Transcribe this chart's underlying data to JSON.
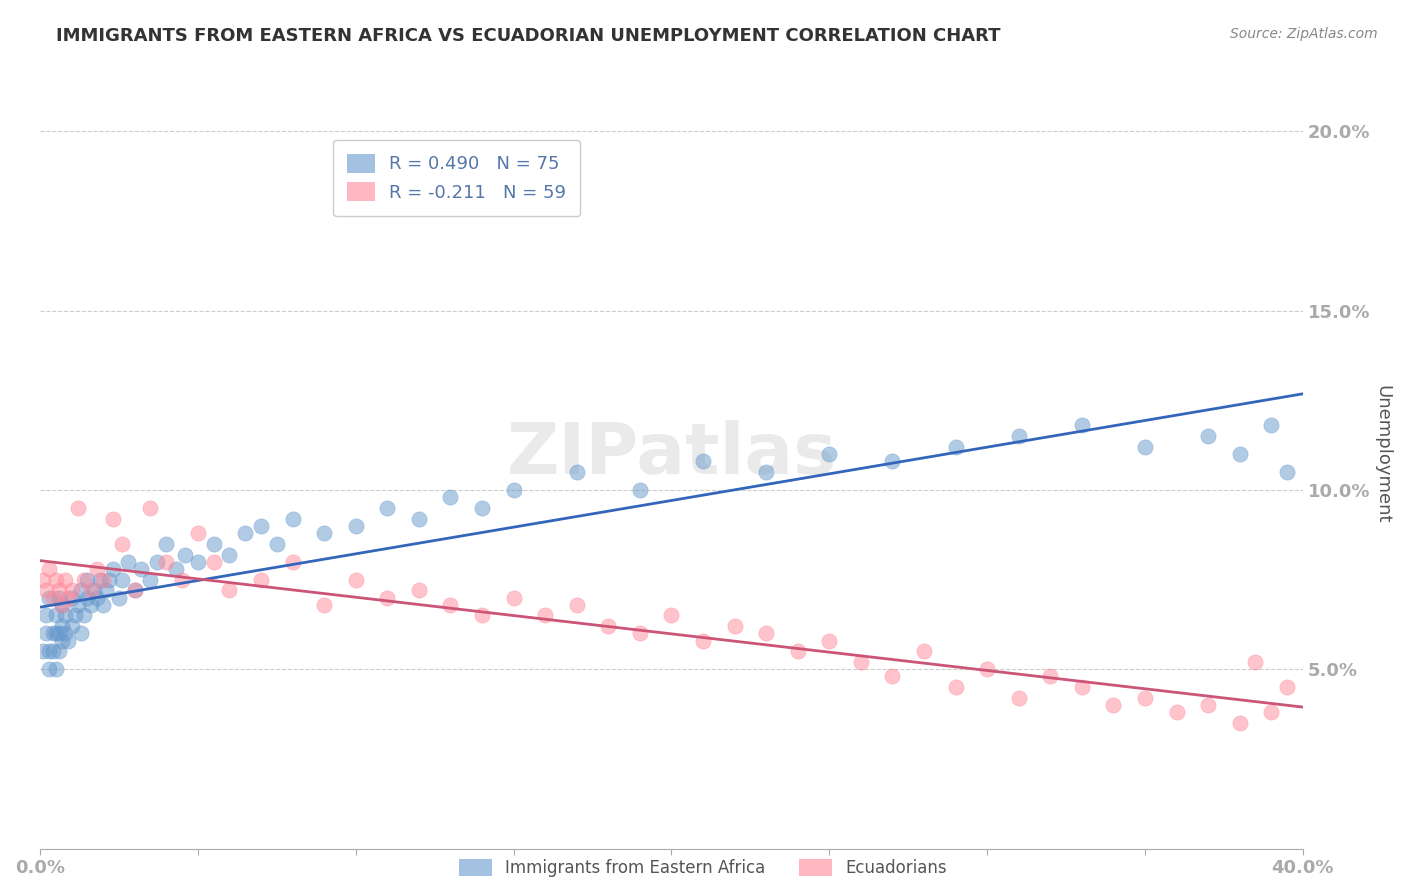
{
  "title": "IMMIGRANTS FROM EASTERN AFRICA VS ECUADORIAN UNEMPLOYMENT CORRELATION CHART",
  "source": "Source: ZipAtlas.com",
  "xlabel": "",
  "ylabel": "Unemployment",
  "xlim": [
    0.0,
    0.4
  ],
  "ylim": [
    0.0,
    0.22
  ],
  "xticks": [
    0.0,
    0.05,
    0.1,
    0.15,
    0.2,
    0.25,
    0.3,
    0.35,
    0.4
  ],
  "xticklabels": [
    "0.0%",
    "",
    "",
    "",
    "",
    "",
    "",
    "",
    "40.0%"
  ],
  "yticks": [
    0.05,
    0.1,
    0.15,
    0.2
  ],
  "yticklabels": [
    "5.0%",
    "10.0%",
    "15.0%",
    "20.0%"
  ],
  "blue_color": "#6699CC",
  "pink_color": "#FF8899",
  "blue_line_color": "#3366BB",
  "pink_line_color": "#CC5577",
  "R_blue": 0.49,
  "N_blue": 75,
  "R_pink": -0.211,
  "N_pink": 59,
  "legend_label_blue": "Immigrants from Eastern Africa",
  "legend_label_pink": "Ecuadorians",
  "watermark": "ZIPatlas",
  "title_color": "#333333",
  "axis_label_color": "#5577AA",
  "grid_color": "#CCCCCC",
  "background_color": "#FFFFFF",
  "blue_scatter_x": [
    0.001,
    0.002,
    0.002,
    0.003,
    0.003,
    0.003,
    0.004,
    0.004,
    0.005,
    0.005,
    0.005,
    0.006,
    0.006,
    0.006,
    0.007,
    0.007,
    0.007,
    0.008,
    0.008,
    0.009,
    0.01,
    0.01,
    0.011,
    0.012,
    0.013,
    0.013,
    0.014,
    0.015,
    0.015,
    0.016,
    0.017,
    0.018,
    0.019,
    0.02,
    0.021,
    0.022,
    0.023,
    0.025,
    0.026,
    0.028,
    0.03,
    0.032,
    0.035,
    0.037,
    0.04,
    0.043,
    0.046,
    0.05,
    0.055,
    0.06,
    0.065,
    0.07,
    0.075,
    0.08,
    0.09,
    0.1,
    0.11,
    0.12,
    0.13,
    0.14,
    0.15,
    0.17,
    0.19,
    0.21,
    0.23,
    0.25,
    0.27,
    0.29,
    0.31,
    0.33,
    0.35,
    0.37,
    0.38,
    0.39,
    0.395
  ],
  "blue_scatter_y": [
    0.055,
    0.06,
    0.065,
    0.05,
    0.055,
    0.07,
    0.055,
    0.06,
    0.05,
    0.06,
    0.065,
    0.055,
    0.06,
    0.07,
    0.058,
    0.062,
    0.068,
    0.06,
    0.065,
    0.058,
    0.062,
    0.07,
    0.065,
    0.068,
    0.06,
    0.072,
    0.065,
    0.07,
    0.075,
    0.068,
    0.072,
    0.07,
    0.075,
    0.068,
    0.072,
    0.075,
    0.078,
    0.07,
    0.075,
    0.08,
    0.072,
    0.078,
    0.075,
    0.08,
    0.085,
    0.078,
    0.082,
    0.08,
    0.085,
    0.082,
    0.088,
    0.09,
    0.085,
    0.092,
    0.088,
    0.09,
    0.095,
    0.092,
    0.098,
    0.095,
    0.1,
    0.105,
    0.1,
    0.108,
    0.105,
    0.11,
    0.108,
    0.112,
    0.115,
    0.118,
    0.112,
    0.115,
    0.11,
    0.118,
    0.105
  ],
  "pink_scatter_x": [
    0.001,
    0.002,
    0.003,
    0.004,
    0.005,
    0.006,
    0.007,
    0.008,
    0.009,
    0.01,
    0.012,
    0.014,
    0.016,
    0.018,
    0.02,
    0.023,
    0.026,
    0.03,
    0.035,
    0.04,
    0.045,
    0.05,
    0.055,
    0.06,
    0.07,
    0.08,
    0.09,
    0.1,
    0.11,
    0.12,
    0.13,
    0.14,
    0.15,
    0.16,
    0.17,
    0.18,
    0.19,
    0.2,
    0.21,
    0.22,
    0.23,
    0.24,
    0.25,
    0.26,
    0.27,
    0.28,
    0.29,
    0.3,
    0.31,
    0.32,
    0.33,
    0.34,
    0.35,
    0.36,
    0.37,
    0.38,
    0.385,
    0.39,
    0.395
  ],
  "pink_scatter_y": [
    0.075,
    0.072,
    0.078,
    0.07,
    0.075,
    0.072,
    0.068,
    0.075,
    0.07,
    0.072,
    0.095,
    0.075,
    0.072,
    0.078,
    0.075,
    0.092,
    0.085,
    0.072,
    0.095,
    0.08,
    0.075,
    0.088,
    0.08,
    0.072,
    0.075,
    0.08,
    0.068,
    0.075,
    0.07,
    0.072,
    0.068,
    0.065,
    0.07,
    0.065,
    0.068,
    0.062,
    0.06,
    0.065,
    0.058,
    0.062,
    0.06,
    0.055,
    0.058,
    0.052,
    0.048,
    0.055,
    0.045,
    0.05,
    0.042,
    0.048,
    0.045,
    0.04,
    0.042,
    0.038,
    0.04,
    0.035,
    0.052,
    0.038,
    0.045
  ]
}
